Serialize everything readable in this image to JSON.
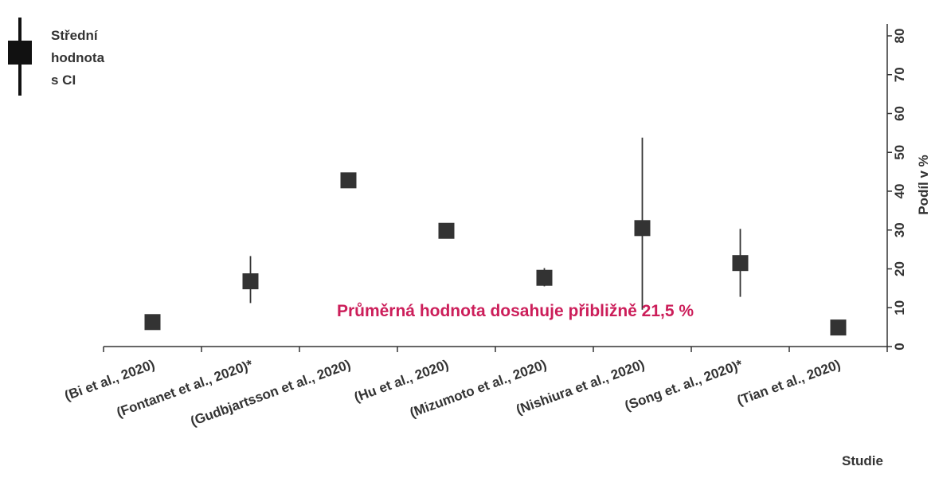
{
  "chart_data": {
    "type": "scatter",
    "title": "",
    "xlabel": "Studie",
    "ylabel": "Podíl v %",
    "ylim": [
      0,
      80
    ],
    "yticks": [
      0,
      10,
      20,
      30,
      40,
      50,
      60,
      70,
      80
    ],
    "y_axis_side": "right",
    "grid": false,
    "legend": {
      "placement": "top-left",
      "lines": [
        "Střední",
        "hodnota",
        "s CI"
      ]
    },
    "categories": [
      "(Bi et al., 2020)",
      "(Fontanet et al., 2020)*",
      "(Gudbjartsson et al., 2020)",
      "(Hu et al., 2020)",
      "(Mizumoto et al., 2020)",
      "(Nishiura et al., 2020)",
      "(Song et. al., 2020)*",
      "(Tian et al., 2020)"
    ],
    "series": [
      {
        "values": [
          6.3,
          16.8,
          42.8,
          29.8,
          17.7,
          30.5,
          21.5,
          4.9
        ],
        "ci_low": [
          null,
          11.2,
          null,
          null,
          15.5,
          9.5,
          12.8,
          null
        ],
        "ci_high": [
          null,
          23.3,
          null,
          null,
          20.2,
          53.8,
          30.3,
          null
        ],
        "color": "#333333"
      }
    ],
    "annotation": {
      "text": "Průměrná hodnota dosahuje přibližně 21,5 %",
      "color": "#cc1e5a"
    }
  }
}
